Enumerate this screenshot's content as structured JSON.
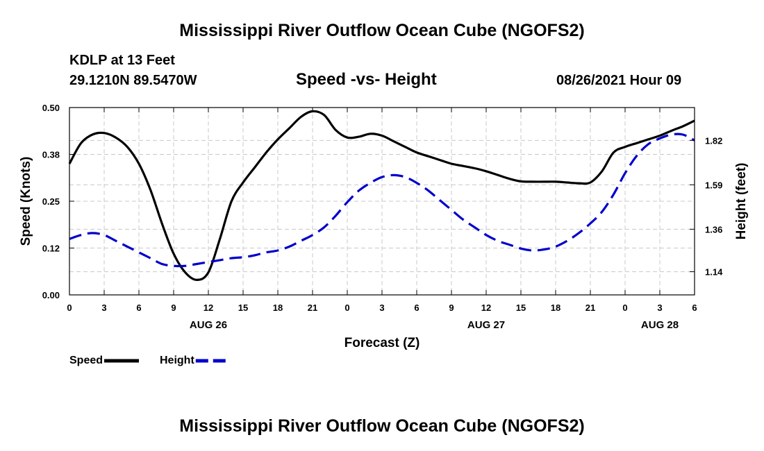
{
  "page": {
    "title_top": "Mississippi River Outflow Ocean Cube (NGOFS2)",
    "title_bottom": "Mississippi River Outflow Ocean Cube (NGOFS2)",
    "station": "KDLP at 13 Feet",
    "coords": "29.1210N  89.5470W",
    "datetime": "08/26/2021 Hour 09"
  },
  "chart_data": {
    "type": "line",
    "title": "Speed -vs- Height",
    "xlabel": "Forecast (Z)",
    "ylabel": "Speed (Knots)",
    "y2label": "Height (feet)",
    "x_range_hours": [
      0,
      54
    ],
    "ylim": [
      0.0,
      0.5
    ],
    "y2lim": [
      1.02,
      1.99
    ],
    "yticks": [
      {
        "value": 0.0,
        "label": "0.00"
      },
      {
        "value": 0.125,
        "label": "0.12"
      },
      {
        "value": 0.25,
        "label": "0.25"
      },
      {
        "value": 0.375,
        "label": "0.38"
      },
      {
        "value": 0.5,
        "label": "0.50"
      }
    ],
    "y2ticks": [
      {
        "value": 1.14,
        "label": "1.14"
      },
      {
        "value": 1.36,
        "label": "1.36"
      },
      {
        "value": 1.59,
        "label": "1.59"
      },
      {
        "value": 1.82,
        "label": "1.82"
      }
    ],
    "xticks": [
      {
        "hour": 0,
        "label": "0"
      },
      {
        "hour": 3,
        "label": "3"
      },
      {
        "hour": 6,
        "label": "6"
      },
      {
        "hour": 9,
        "label": "9"
      },
      {
        "hour": 12,
        "label": "12"
      },
      {
        "hour": 15,
        "label": "15"
      },
      {
        "hour": 18,
        "label": "18"
      },
      {
        "hour": 21,
        "label": "21"
      },
      {
        "hour": 24,
        "label": "0"
      },
      {
        "hour": 27,
        "label": "3"
      },
      {
        "hour": 30,
        "label": "6"
      },
      {
        "hour": 33,
        "label": "9"
      },
      {
        "hour": 36,
        "label": "12"
      },
      {
        "hour": 39,
        "label": "15"
      },
      {
        "hour": 42,
        "label": "18"
      },
      {
        "hour": 45,
        "label": "21"
      },
      {
        "hour": 48,
        "label": "0"
      },
      {
        "hour": 51,
        "label": "3"
      },
      {
        "hour": 54,
        "label": "6"
      }
    ],
    "date_labels": [
      {
        "hour": 12,
        "label": "AUG 26"
      },
      {
        "hour": 36,
        "label": "AUG 27"
      },
      {
        "hour": 51,
        "label": "AUG 28"
      }
    ],
    "grid": true,
    "legend": "bottom-left",
    "series": [
      {
        "name": "Speed",
        "axis": "left",
        "color": "#000000",
        "style": "solid",
        "x": [
          0,
          1,
          2,
          3,
          4,
          5,
          6,
          7,
          8,
          9,
          10,
          11,
          12,
          13,
          14,
          15,
          16,
          17,
          18,
          19,
          20,
          21,
          22,
          23,
          24,
          25,
          26,
          27,
          28,
          29,
          30,
          31,
          32,
          33,
          34,
          35,
          36,
          37,
          38,
          39,
          40,
          41,
          42,
          43,
          44,
          45,
          46,
          47,
          48,
          49,
          50,
          51,
          52,
          53,
          54
        ],
        "values": [
          0.35,
          0.405,
          0.428,
          0.432,
          0.42,
          0.395,
          0.35,
          0.28,
          0.19,
          0.11,
          0.06,
          0.04,
          0.06,
          0.15,
          0.25,
          0.3,
          0.34,
          0.38,
          0.415,
          0.445,
          0.475,
          0.49,
          0.48,
          0.44,
          0.42,
          0.422,
          0.43,
          0.425,
          0.41,
          0.395,
          0.38,
          0.37,
          0.36,
          0.35,
          0.344,
          0.338,
          0.33,
          0.32,
          0.31,
          0.303,
          0.302,
          0.302,
          0.302,
          0.3,
          0.298,
          0.3,
          0.33,
          0.38,
          0.395,
          0.405,
          0.415,
          0.425,
          0.438,
          0.45,
          0.465
        ]
      },
      {
        "name": "Height",
        "axis": "right",
        "color": "#0000cc",
        "style": "dashed",
        "x": [
          0,
          1,
          2,
          3,
          4,
          5,
          6,
          7,
          8,
          9,
          10,
          11,
          12,
          13,
          14,
          15,
          16,
          17,
          18,
          19,
          20,
          21,
          22,
          23,
          24,
          25,
          26,
          27,
          28,
          29,
          30,
          31,
          32,
          33,
          34,
          35,
          36,
          37,
          38,
          39,
          40,
          41,
          42,
          43,
          44,
          45,
          46,
          47,
          48,
          49,
          50,
          51,
          52,
          53,
          54
        ],
        "values": [
          1.31,
          1.33,
          1.34,
          1.33,
          1.3,
          1.27,
          1.24,
          1.21,
          1.18,
          1.17,
          1.17,
          1.18,
          1.19,
          1.2,
          1.21,
          1.215,
          1.225,
          1.24,
          1.25,
          1.27,
          1.3,
          1.33,
          1.37,
          1.43,
          1.5,
          1.56,
          1.6,
          1.63,
          1.64,
          1.63,
          1.6,
          1.56,
          1.51,
          1.46,
          1.41,
          1.37,
          1.33,
          1.3,
          1.28,
          1.26,
          1.25,
          1.255,
          1.27,
          1.3,
          1.34,
          1.39,
          1.45,
          1.54,
          1.65,
          1.74,
          1.8,
          1.83,
          1.85,
          1.85,
          1.82
        ]
      }
    ]
  }
}
